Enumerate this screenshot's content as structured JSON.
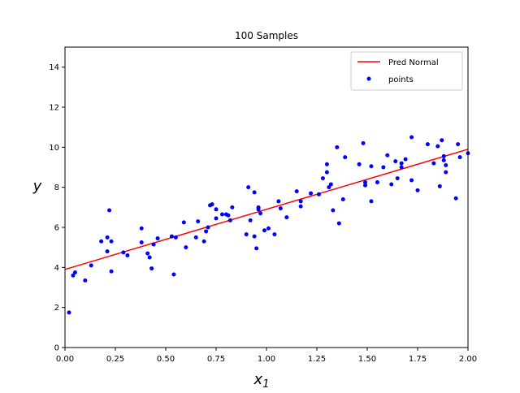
{
  "chart_data": {
    "type": "scatter",
    "title": "100 Samples",
    "xlabel": "x",
    "xlabel_subscript": "1",
    "ylabel": "y",
    "xlim": [
      0,
      2
    ],
    "ylim": [
      0,
      15
    ],
    "x_ticks": [
      0.0,
      0.25,
      0.5,
      0.75,
      1.0,
      1.25,
      1.5,
      1.75,
      2.0
    ],
    "x_tick_labels": [
      "0.00",
      "0.25",
      "0.50",
      "0.75",
      "1.00",
      "1.25",
      "1.50",
      "1.75",
      "2.00"
    ],
    "y_ticks": [
      0,
      2,
      4,
      6,
      8,
      10,
      12,
      14
    ],
    "y_tick_labels": [
      "0",
      "2",
      "4",
      "6",
      "8",
      "10",
      "12",
      "14"
    ],
    "grid": false,
    "legend_position": "top-right",
    "series": [
      {
        "name": "Pred Normal",
        "kind": "line",
        "color": "#ff0000",
        "x": [
          0,
          2
        ],
        "y": [
          3.9,
          9.9
        ]
      },
      {
        "name": "points",
        "kind": "scatter",
        "color": "#0000ff",
        "points": [
          [
            0.02,
            1.75
          ],
          [
            0.04,
            3.6
          ],
          [
            0.05,
            3.75
          ],
          [
            0.1,
            3.35
          ],
          [
            0.13,
            4.1
          ],
          [
            0.18,
            5.3
          ],
          [
            0.21,
            4.8
          ],
          [
            0.21,
            5.5
          ],
          [
            0.22,
            6.85
          ],
          [
            0.23,
            5.3
          ],
          [
            0.23,
            3.8
          ],
          [
            0.29,
            4.75
          ],
          [
            0.31,
            4.6
          ],
          [
            0.38,
            5.25
          ],
          [
            0.38,
            5.95
          ],
          [
            0.41,
            4.7
          ],
          [
            0.42,
            4.5
          ],
          [
            0.43,
            3.95
          ],
          [
            0.44,
            5.15
          ],
          [
            0.46,
            5.45
          ],
          [
            0.53,
            5.55
          ],
          [
            0.54,
            3.65
          ],
          [
            0.55,
            5.5
          ],
          [
            0.59,
            6.25
          ],
          [
            0.6,
            5.0
          ],
          [
            0.65,
            5.5
          ],
          [
            0.66,
            6.3
          ],
          [
            0.69,
            5.3
          ],
          [
            0.7,
            5.8
          ],
          [
            0.71,
            6.0
          ],
          [
            0.72,
            7.1
          ],
          [
            0.73,
            7.15
          ],
          [
            0.75,
            6.9
          ],
          [
            0.75,
            6.45
          ],
          [
            0.78,
            6.65
          ],
          [
            0.8,
            6.65
          ],
          [
            0.81,
            6.6
          ],
          [
            0.82,
            6.35
          ],
          [
            0.83,
            7.0
          ],
          [
            0.9,
            5.65
          ],
          [
            0.91,
            8.0
          ],
          [
            0.92,
            6.35
          ],
          [
            0.94,
            5.55
          ],
          [
            0.94,
            7.75
          ],
          [
            0.95,
            4.95
          ],
          [
            0.96,
            6.9
          ],
          [
            0.96,
            7.0
          ],
          [
            0.97,
            6.7
          ],
          [
            0.99,
            5.85
          ],
          [
            1.01,
            5.95
          ],
          [
            1.04,
            5.65
          ],
          [
            1.06,
            7.3
          ],
          [
            1.07,
            6.95
          ],
          [
            1.1,
            6.5
          ],
          [
            1.15,
            7.8
          ],
          [
            1.17,
            7.3
          ],
          [
            1.17,
            7.05
          ],
          [
            1.22,
            7.7
          ],
          [
            1.26,
            7.65
          ],
          [
            1.28,
            8.45
          ],
          [
            1.3,
            8.75
          ],
          [
            1.3,
            9.15
          ],
          [
            1.31,
            8.0
          ],
          [
            1.32,
            8.15
          ],
          [
            1.33,
            6.85
          ],
          [
            1.35,
            10.0
          ],
          [
            1.36,
            6.2
          ],
          [
            1.38,
            7.4
          ],
          [
            1.39,
            9.5
          ],
          [
            1.46,
            9.15
          ],
          [
            1.48,
            10.2
          ],
          [
            1.49,
            8.25
          ],
          [
            1.49,
            8.1
          ],
          [
            1.52,
            9.05
          ],
          [
            1.52,
            7.3
          ],
          [
            1.55,
            8.25
          ],
          [
            1.58,
            9.0
          ],
          [
            1.6,
            9.6
          ],
          [
            1.62,
            8.15
          ],
          [
            1.64,
            9.3
          ],
          [
            1.65,
            8.45
          ],
          [
            1.67,
            9.2
          ],
          [
            1.67,
            9.0
          ],
          [
            1.69,
            9.4
          ],
          [
            1.72,
            10.5
          ],
          [
            1.72,
            8.35
          ],
          [
            1.75,
            7.85
          ],
          [
            1.8,
            10.15
          ],
          [
            1.83,
            9.2
          ],
          [
            1.85,
            10.05
          ],
          [
            1.86,
            8.05
          ],
          [
            1.87,
            10.35
          ],
          [
            1.88,
            9.35
          ],
          [
            1.88,
            9.55
          ],
          [
            1.89,
            9.1
          ],
          [
            1.89,
            8.75
          ],
          [
            1.94,
            7.45
          ],
          [
            1.95,
            10.15
          ],
          [
            1.96,
            9.5
          ],
          [
            2.0,
            9.7
          ]
        ]
      }
    ]
  }
}
